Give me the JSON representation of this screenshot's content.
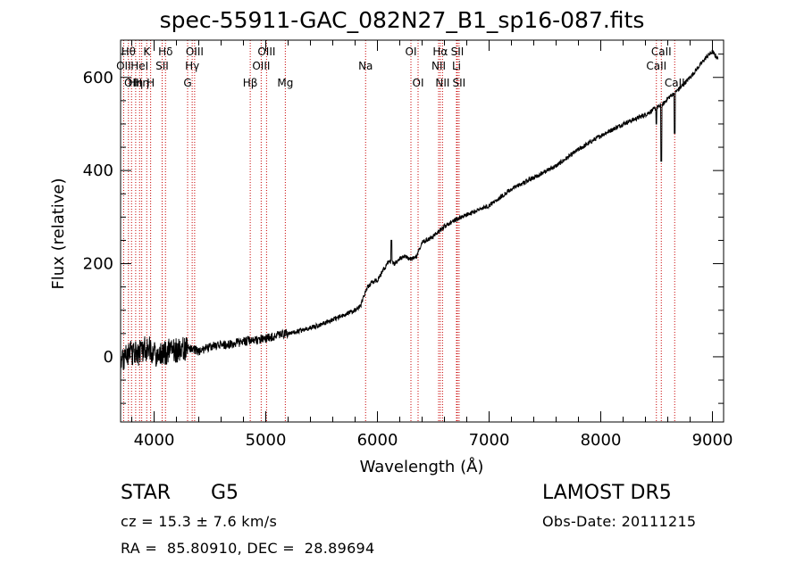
{
  "chart_data": {
    "type": "line",
    "title": "spec-55911-GAC_082N27_B1_sp16-087.fits",
    "xlabel": "Wavelength (Å)",
    "ylabel": "Flux (relative)",
    "xlim": [
      3700,
      9100
    ],
    "ylim": [
      -140,
      680
    ],
    "xticks": [
      4000,
      5000,
      6000,
      7000,
      8000,
      9000
    ],
    "yticks": [
      0,
      200,
      400,
      600
    ],
    "grid": false,
    "legend": "none",
    "line_color": "#000000",
    "marker_color": "#c80000",
    "series": [
      {
        "x": [
          3700,
          3750,
          3800,
          3850,
          3900,
          3950,
          4000,
          4100,
          4200,
          4300,
          4400,
          4500,
          4600,
          4700,
          4800,
          4900,
          5000,
          5100,
          5200,
          5300,
          5400,
          5500,
          5600,
          5700,
          5800,
          5850,
          5900,
          5950,
          6000,
          6050,
          6100,
          6150,
          6200,
          6250,
          6300,
          6350,
          6400,
          6500,
          6600,
          6700,
          6800,
          7000,
          7200,
          7400,
          7600,
          7800,
          8000,
          8200,
          8400,
          8500,
          8550,
          8600,
          8650,
          8700,
          8800,
          8900,
          8950,
          9000,
          9050
        ],
        "y": [
          -20,
          0,
          10,
          5,
          15,
          20,
          5,
          10,
          15,
          20,
          12,
          22,
          25,
          28,
          33,
          35,
          40,
          45,
          50,
          55,
          62,
          70,
          80,
          90,
          100,
          110,
          145,
          160,
          165,
          185,
          205,
          200,
          210,
          215,
          210,
          215,
          245,
          258,
          280,
          295,
          305,
          325,
          360,
          385,
          410,
          445,
          475,
          500,
          520,
          535,
          540,
          555,
          565,
          575,
          600,
          630,
          645,
          655,
          640
        ]
      }
    ],
    "absorption_dips": [
      {
        "x": 8498,
        "y": 500
      },
      {
        "x": 8542,
        "y": 420
      },
      {
        "x": 8662,
        "y": 480
      }
    ],
    "spikes": [
      {
        "x": 6125,
        "y": 250
      }
    ],
    "line_markers": [
      {
        "x": 3727,
        "label": "OII",
        "row": 2
      },
      {
        "x": 3770,
        "label": "Hθ",
        "row": 1
      },
      {
        "x": 3798,
        "label": "OII",
        "row": 3
      },
      {
        "x": 3835,
        "label": "Hη",
        "row": 3
      },
      {
        "x": 3870,
        "label": "HeI",
        "row": 2
      },
      {
        "x": 3889,
        "label": "Hη",
        "row": 3
      },
      {
        "x": 3934,
        "label": "K",
        "row": 1
      },
      {
        "x": 3969,
        "label": "H",
        "row": 3
      },
      {
        "x": 4072,
        "label": "SII",
        "row": 2
      },
      {
        "x": 4102,
        "label": "Hδ",
        "row": 1
      },
      {
        "x": 4300,
        "label": "G",
        "row": 3
      },
      {
        "x": 4341,
        "label": "Hγ",
        "row": 2
      },
      {
        "x": 4363,
        "label": "OIII",
        "row": 1
      },
      {
        "x": 4861,
        "label": "Hβ",
        "row": 3
      },
      {
        "x": 4959,
        "label": "OIII",
        "row": 2
      },
      {
        "x": 5007,
        "label": "OIII",
        "row": 1
      },
      {
        "x": 5175,
        "label": "Mg",
        "row": 3
      },
      {
        "x": 5894,
        "label": "Na",
        "row": 2
      },
      {
        "x": 6300,
        "label": "OI",
        "row": 1
      },
      {
        "x": 6364,
        "label": "OI",
        "row": 3
      },
      {
        "x": 6548,
        "label": "NII",
        "row": 2
      },
      {
        "x": 6563,
        "label": "Hα",
        "row": 1
      },
      {
        "x": 6583,
        "label": "NII",
        "row": 3
      },
      {
        "x": 6708,
        "label": "Li",
        "row": 2
      },
      {
        "x": 6716,
        "label": "SII",
        "row": 1
      },
      {
        "x": 6731,
        "label": "SII",
        "row": 3
      },
      {
        "x": 8498,
        "label": "CaII",
        "row": 2
      },
      {
        "x": 8542,
        "label": "CaII",
        "row": 1
      },
      {
        "x": 8662,
        "label": "CaII",
        "row": 3
      }
    ]
  },
  "info": {
    "class_label": "STAR",
    "subclass": "G5",
    "survey": "LAMOST DR5",
    "redshift_line": "cz = 15.3 ± 7.6 km/s",
    "obs_date": "Obs-Date: 20111215",
    "coords": "RA =  85.80910, DEC =  28.89694"
  }
}
